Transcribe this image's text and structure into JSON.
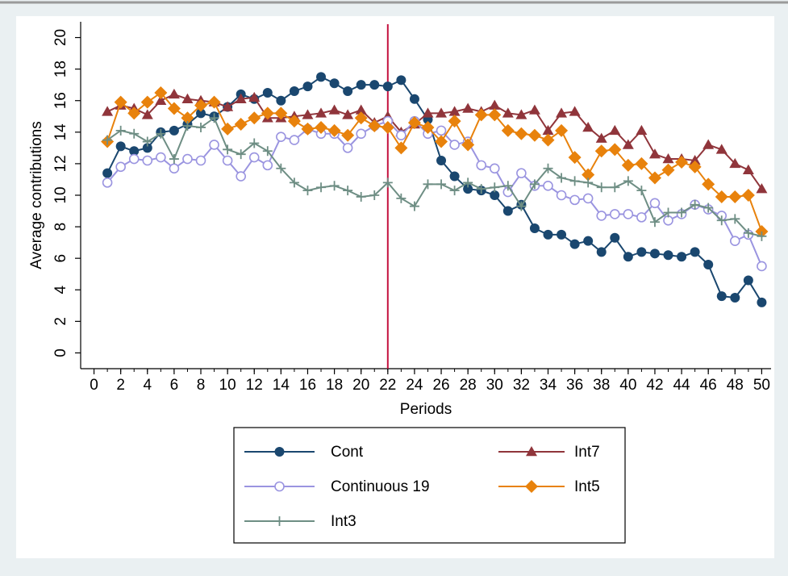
{
  "chart_data": {
    "type": "line",
    "xlabel": "Periods",
    "ylabel": "Average contributions",
    "x": [
      1,
      2,
      3,
      4,
      5,
      6,
      7,
      8,
      9,
      10,
      11,
      12,
      13,
      14,
      15,
      16,
      17,
      18,
      19,
      20,
      21,
      22,
      23,
      24,
      25,
      26,
      27,
      28,
      29,
      30,
      31,
      32,
      33,
      34,
      35,
      36,
      37,
      38,
      39,
      40,
      41,
      42,
      43,
      44,
      45,
      46,
      47,
      48,
      49,
      50
    ],
    "xlim": [
      -1,
      50.7
    ],
    "xticks": [
      0,
      2,
      4,
      6,
      8,
      10,
      12,
      14,
      16,
      18,
      20,
      22,
      24,
      26,
      28,
      30,
      32,
      34,
      36,
      38,
      40,
      42,
      44,
      46,
      48,
      50
    ],
    "ylim": [
      -1,
      21
    ],
    "yticks": [
      0,
      2,
      4,
      6,
      8,
      10,
      12,
      14,
      16,
      18,
      20
    ],
    "vline": 22,
    "vline_color": "#c4123f",
    "series": [
      {
        "name": "Cont",
        "color": "#1a476f",
        "marker": "circle",
        "values": [
          11.4,
          13.1,
          12.8,
          13.0,
          14.0,
          14.1,
          14.5,
          15.2,
          15.0,
          15.6,
          16.4,
          16.1,
          16.5,
          16.0,
          16.6,
          16.9,
          17.5,
          17.1,
          16.6,
          17.0,
          17.0,
          16.9,
          17.3,
          16.1,
          14.8,
          12.2,
          11.2,
          10.4,
          10.3,
          10.0,
          9.0,
          9.4,
          7.9,
          7.5,
          7.5,
          6.9,
          7.1,
          6.4,
          7.3,
          6.1,
          6.4,
          6.3,
          6.2,
          6.1,
          6.4,
          5.6,
          3.6,
          3.5,
          4.6,
          3.2
        ]
      },
      {
        "name": "Int7",
        "color": "#90353b",
        "marker": "triangle",
        "values": [
          15.3,
          15.7,
          15.5,
          15.1,
          16.0,
          16.4,
          16.1,
          16.0,
          15.9,
          15.6,
          16.1,
          16.2,
          14.9,
          14.9,
          15.0,
          15.1,
          15.2,
          15.4,
          15.1,
          15.4,
          14.6,
          15.0,
          14.0,
          14.5,
          15.2,
          15.2,
          15.3,
          15.5,
          15.3,
          15.7,
          15.2,
          15.1,
          15.4,
          14.1,
          15.2,
          15.3,
          14.3,
          13.6,
          14.1,
          13.2,
          14.1,
          12.6,
          12.3,
          12.3,
          12.2,
          13.2,
          12.9,
          12.0,
          11.6,
          10.4
        ]
      },
      {
        "name": "Continuous 19",
        "color": "#9a94e0",
        "marker": "circle-hollow",
        "values": [
          10.8,
          11.8,
          12.3,
          12.2,
          12.4,
          11.7,
          12.3,
          12.2,
          13.2,
          12.2,
          11.2,
          12.4,
          11.9,
          13.7,
          13.5,
          14.2,
          13.9,
          13.9,
          13.0,
          13.9,
          14.4,
          14.7,
          13.8,
          14.7,
          13.9,
          14.1,
          13.2,
          13.4,
          11.9,
          11.7,
          10.2,
          11.4,
          10.6,
          10.6,
          10.0,
          9.7,
          9.8,
          8.7,
          8.8,
          8.8,
          8.6,
          9.5,
          8.4,
          8.8,
          9.4,
          9.1,
          8.7,
          7.1,
          7.5,
          5.5
        ]
      },
      {
        "name": "Int5",
        "color": "#e8820c",
        "marker": "diamond",
        "values": [
          13.4,
          15.9,
          15.2,
          15.9,
          16.5,
          15.5,
          14.9,
          15.7,
          15.9,
          14.2,
          14.5,
          14.9,
          15.2,
          15.2,
          14.7,
          14.2,
          14.3,
          14.1,
          13.8,
          14.9,
          14.4,
          14.3,
          13.0,
          14.6,
          14.3,
          13.4,
          14.7,
          13.2,
          15.1,
          15.1,
          14.1,
          13.9,
          13.8,
          13.5,
          14.1,
          12.4,
          11.3,
          12.8,
          12.9,
          11.9,
          12.0,
          11.1,
          11.6,
          12.1,
          11.8,
          10.7,
          9.9,
          9.9,
          10.0,
          7.7
        ]
      },
      {
        "name": "Int3",
        "color": "#6e8e84",
        "marker": "plus",
        "values": [
          13.5,
          14.1,
          13.9,
          13.4,
          13.9,
          12.3,
          14.4,
          14.3,
          14.9,
          12.9,
          12.6,
          13.3,
          12.8,
          11.7,
          10.8,
          10.3,
          10.5,
          10.6,
          10.3,
          9.9,
          10.0,
          10.8,
          9.8,
          9.3,
          10.7,
          10.7,
          10.3,
          10.8,
          10.4,
          10.5,
          10.6,
          9.3,
          10.7,
          11.7,
          11.1,
          10.9,
          10.8,
          10.5,
          10.5,
          10.9,
          10.3,
          8.3,
          8.9,
          8.9,
          9.4,
          9.2,
          8.4,
          8.5,
          7.6,
          7.4
        ]
      }
    ]
  }
}
